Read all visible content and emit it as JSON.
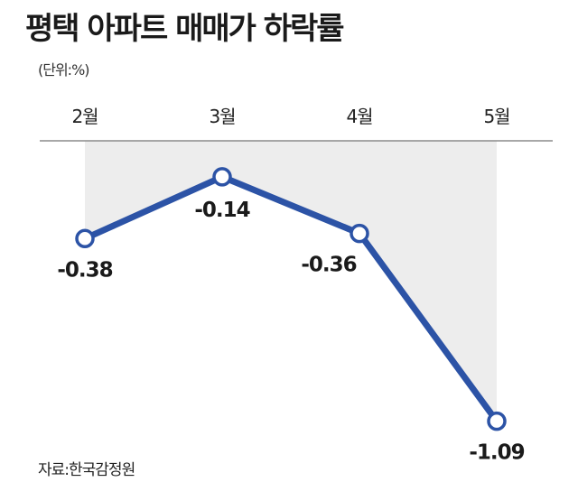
{
  "title": "평택 아파트 매매가 하락률",
  "unit": "(단위:%)",
  "source": "자료:한국감정원",
  "colors": {
    "line": "#2c53a6",
    "area": "#ededed",
    "axis": "#8c8c8c",
    "marker_fill": "#ffffff"
  },
  "chart_data": {
    "type": "line",
    "categories": [
      "2월",
      "3월",
      "4월",
      "5월"
    ],
    "values": [
      -0.38,
      -0.14,
      -0.36,
      -1.09
    ],
    "labels": [
      "-0.38",
      "-0.14",
      "-0.36",
      "-1.09"
    ],
    "title": "평택 아파트 매매가 하락률",
    "xlabel": "",
    "ylabel": "",
    "x_axis_position": "top",
    "grid": false,
    "legend": "none"
  }
}
